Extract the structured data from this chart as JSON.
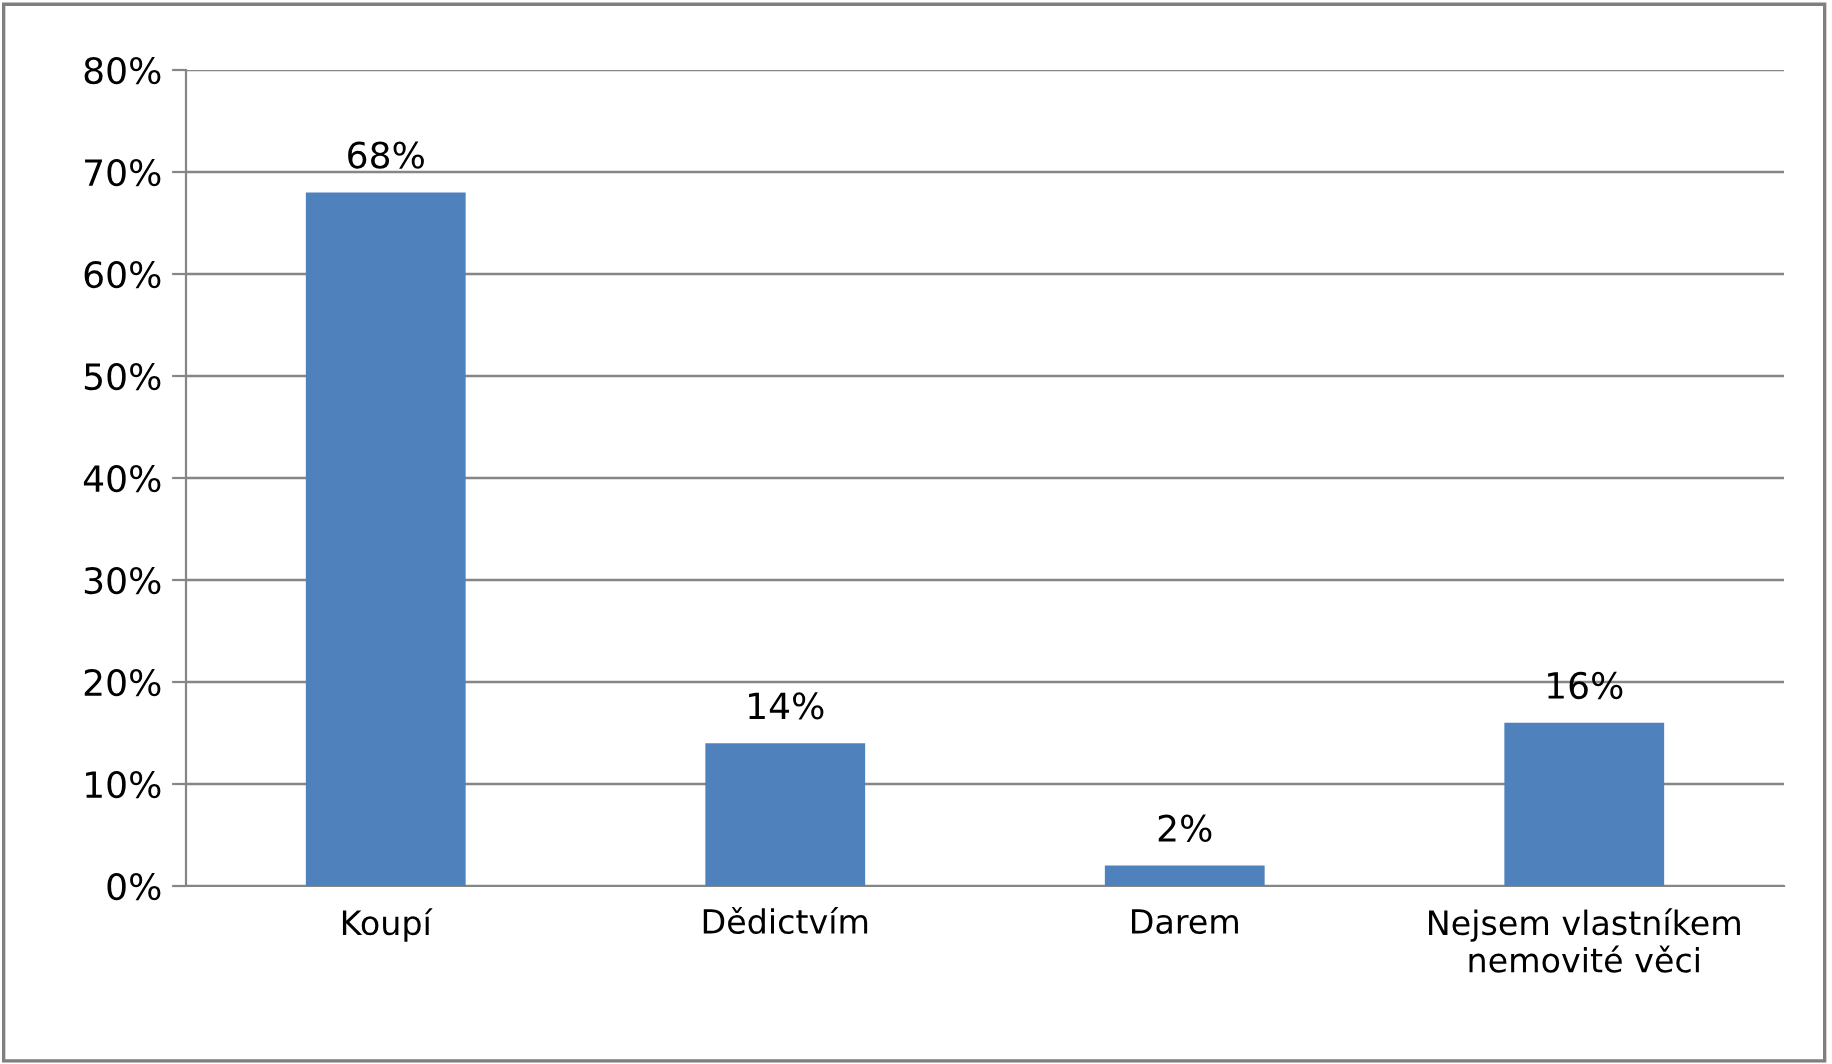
{
  "chart_data": {
    "type": "bar",
    "categories": [
      "Koupí",
      "Dědictvím",
      "Darem",
      "Nejsem vlastníkem\nnemovité věci"
    ],
    "values": [
      68,
      14,
      2,
      16
    ],
    "value_labels": [
      "68%",
      "14%",
      "2%",
      "16%"
    ],
    "color": "#4f81bd",
    "ylim": [
      0,
      80
    ],
    "yticks": [
      {
        "value": 0,
        "label": "0%"
      },
      {
        "value": 10,
        "label": "10%"
      },
      {
        "value": 20,
        "label": "20%"
      },
      {
        "value": 30,
        "label": "30%"
      },
      {
        "value": 40,
        "label": "40%"
      },
      {
        "value": 50,
        "label": "50%"
      },
      {
        "value": 60,
        "label": "60%"
      },
      {
        "value": 70,
        "label": "70%"
      },
      {
        "value": 80,
        "label": "80%"
      }
    ],
    "grid": "y",
    "legend": false
  }
}
